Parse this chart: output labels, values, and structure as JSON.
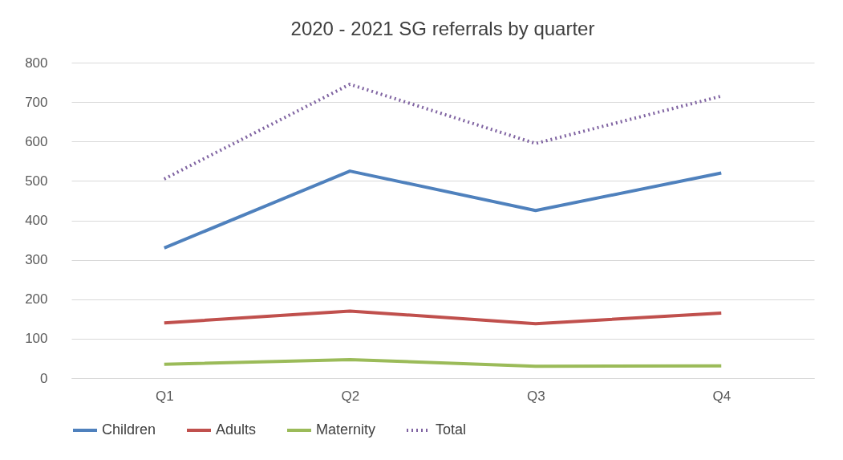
{
  "chart_data": {
    "type": "line",
    "title": "2020 - 2021 SG referrals by quarter",
    "categories": [
      "Q1",
      "Q2",
      "Q3",
      "Q4"
    ],
    "series": [
      {
        "name": "Children",
        "color": "#4f81bd",
        "values": [
          330,
          525,
          425,
          520
        ]
      },
      {
        "name": "Adults",
        "color": "#c0504d",
        "values": [
          140,
          170,
          138,
          165
        ]
      },
      {
        "name": "Maternity",
        "color": "#9bbb59",
        "values": [
          35,
          47,
          30,
          31
        ]
      },
      {
        "name": "Total",
        "color": "#8064a2",
        "values": [
          505,
          745,
          595,
          715
        ],
        "line_style": "dotted"
      }
    ],
    "ylim": [
      0,
      800
    ],
    "yticks": [
      0,
      100,
      200,
      300,
      400,
      500,
      600,
      700,
      800
    ],
    "grid": "y",
    "legend": "bottom",
    "marker": "none",
    "line_style": "solid"
  }
}
